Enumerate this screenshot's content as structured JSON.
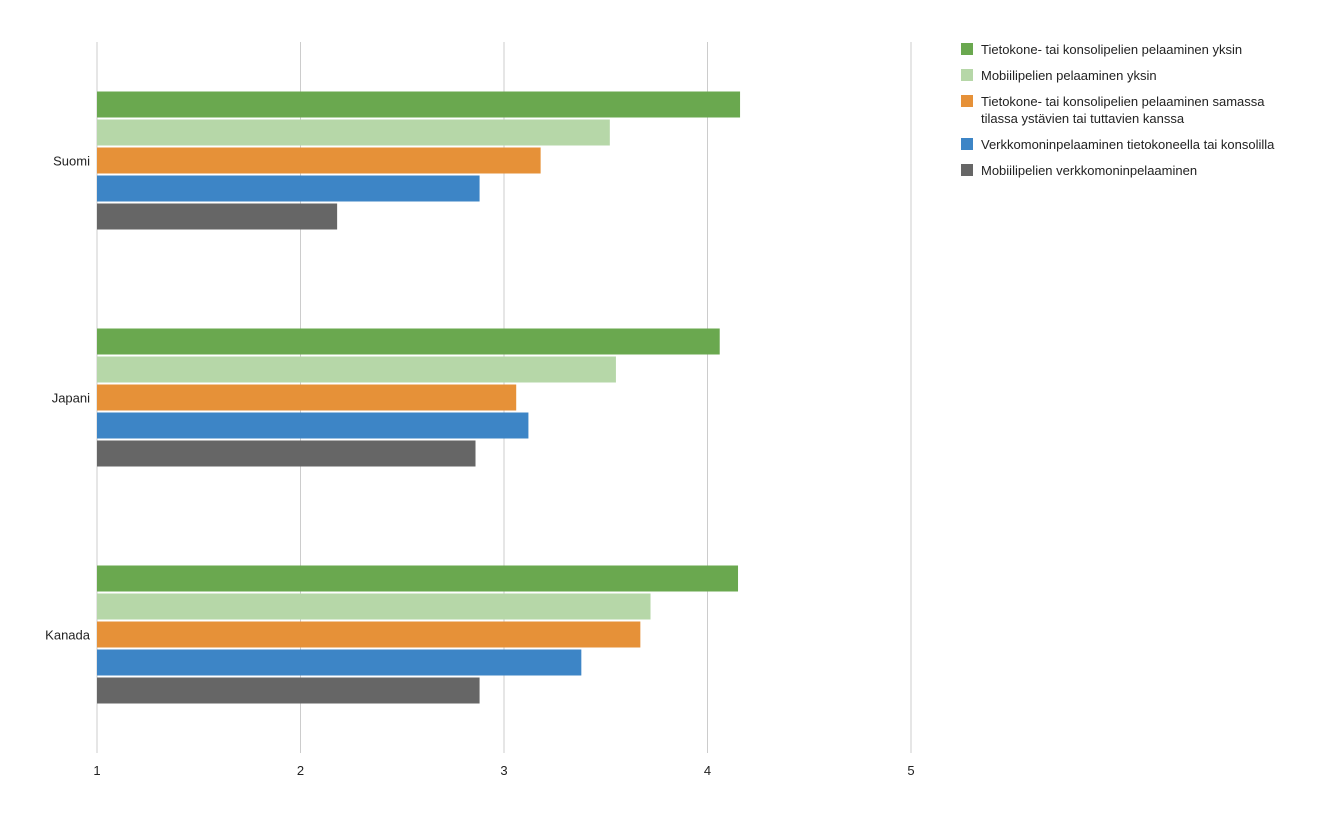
{
  "chart_data": {
    "type": "bar",
    "orientation": "horizontal",
    "categories": [
      "Suomi",
      "Japani",
      "Kanada"
    ],
    "series": [
      {
        "name": "Tietokone- tai konsolipelien pelaaminen yksin",
        "color": "#6aa84f",
        "values": [
          4.16,
          4.06,
          4.15
        ]
      },
      {
        "name": "Mobiilipelien pelaaminen yksin",
        "color": "#b6d7a8",
        "values": [
          3.52,
          3.55,
          3.72
        ]
      },
      {
        "name": "Tietokone- tai konsolipelien pelaaminen samassa tilassa ystävien tai tuttavien kanssa",
        "color": "#e69138",
        "values": [
          3.18,
          3.06,
          3.67
        ]
      },
      {
        "name": "Verkkomoninpelaaminen tietokoneella tai konsolilla",
        "color": "#3d85c6",
        "values": [
          2.88,
          3.12,
          3.38
        ]
      },
      {
        "name": "Mobiilipelien verkkomoninpelaaminen",
        "color": "#666666",
        "values": [
          2.18,
          2.86,
          2.88
        ]
      }
    ],
    "xlim": [
      1,
      5
    ],
    "xticks": [
      "1",
      "2",
      "3",
      "4",
      "5"
    ],
    "grid": true,
    "legend_position": "right",
    "title": "",
    "xlabel": "",
    "ylabel": ""
  }
}
